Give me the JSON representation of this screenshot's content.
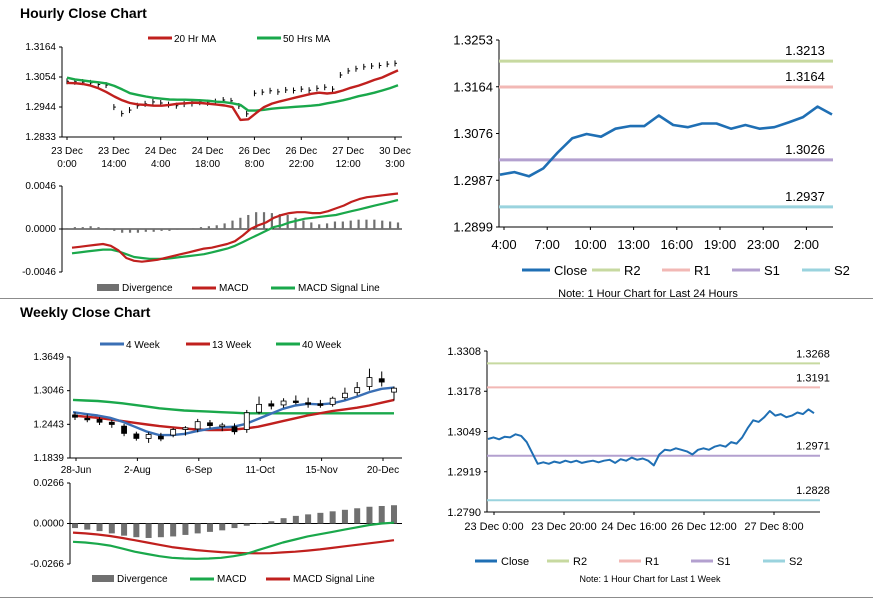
{
  "sections": {
    "hourly_title": "Hourly Close Chart",
    "weekly_title": "Weekly Close Chart"
  },
  "colors": {
    "red": "#c0201e",
    "green": "#1aa84b",
    "blue": "#3a6fb5",
    "close_blue": "#1f6fb4",
    "r2": "#c7d9a0",
    "r1": "#f2b8b5",
    "s1": "#b3a0cf",
    "s2": "#9ad3de",
    "gray_bar": "#707070"
  },
  "chart_data": [
    {
      "id": "hourly-price",
      "type": "line",
      "title": "Hourly Close Chart",
      "legend": [
        "20 Hr MA",
        "50 Hrs MA"
      ],
      "ylim": [
        1.2833,
        1.3164
      ],
      "yticks": [
        "1.3164",
        "1.3054",
        "1.2944",
        "1.2833"
      ],
      "xticks": [
        [
          "23 Dec",
          "0:00"
        ],
        [
          "23 Dec",
          "14:00"
        ],
        [
          "24 Dec",
          "4:00"
        ],
        [
          "24 Dec",
          "18:00"
        ],
        [
          "26 Dec",
          "8:00"
        ],
        [
          "26 Dec",
          "22:00"
        ],
        [
          "27 Dec",
          "12:00"
        ],
        [
          "30 Dec",
          "3:00"
        ]
      ],
      "close": [
        1.3038,
        1.3036,
        1.3035,
        1.3032,
        1.3026,
        1.3024,
        1.2943,
        1.2919,
        1.2932,
        1.2948,
        1.2955,
        1.2962,
        1.2958,
        1.2952,
        1.2948,
        1.2954,
        1.2956,
        1.2961,
        1.2959,
        1.2963,
        1.2969,
        1.2966,
        1.2947,
        1.2918,
        1.2994,
        1.2998,
        1.3003,
        1.2999,
        1.3006,
        1.3004,
        1.3009,
        1.3005,
        1.3012,
        1.3016,
        1.3009,
        1.3061,
        1.3076,
        1.3084,
        1.3091,
        1.3094,
        1.3096,
        1.3101,
        1.3104
      ],
      "series": [
        {
          "name": "20 Hr MA",
          "values": [
            1.3032,
            1.3031,
            1.3028,
            1.3022,
            1.3012,
            1.2998,
            1.2982,
            1.2968,
            1.2958,
            1.2953,
            1.2951,
            1.2948,
            1.2948,
            1.2951,
            1.2955,
            1.2957,
            1.2959,
            1.2958,
            1.2955,
            1.2952,
            1.2949,
            1.2943,
            1.2896,
            1.2898,
            1.2921,
            1.2943,
            1.2956,
            1.2964,
            1.2971,
            1.2978,
            1.2985,
            1.2992,
            1.2996,
            1.2993,
            1.2996,
            1.3004,
            1.3014,
            1.3022,
            1.3032,
            1.3043,
            1.3052,
            1.3065,
            1.3078
          ]
        },
        {
          "name": "50 Hrs MA",
          "values": [
            1.3051,
            1.3045,
            1.3041,
            1.3037,
            1.3034,
            1.303,
            1.3021,
            1.3008,
            1.2994,
            1.2988,
            1.2982,
            1.2977,
            1.2974,
            1.2971,
            1.297,
            1.297,
            1.2969,
            1.2968,
            1.2966,
            1.2963,
            1.2961,
            1.2957,
            1.2951,
            1.293,
            1.293,
            1.2933,
            1.2937,
            1.294,
            1.2942,
            1.2944,
            1.2946,
            1.2948,
            1.2951,
            1.2957,
            1.2962,
            1.2968,
            1.2975,
            1.2983,
            1.2989,
            1.2996,
            1.3004,
            1.3013,
            1.3023
          ]
        }
      ]
    },
    {
      "id": "hourly-macd",
      "type": "line",
      "legend": [
        "Divergence",
        "MACD",
        "MACD Signal Line"
      ],
      "ylim": [
        -0.0046,
        0.0046
      ],
      "yticks": [
        "0.0046",
        "0.0000",
        "-0.0046"
      ],
      "series": [
        {
          "name": "MACD",
          "values": [
            -0.002,
            -0.0019,
            -0.0018,
            -0.0017,
            -0.0016,
            -0.0018,
            -0.0023,
            -0.0031,
            -0.0034,
            -0.0035,
            -0.0034,
            -0.0033,
            -0.0031,
            -0.0029,
            -0.0027,
            -0.0025,
            -0.0023,
            -0.0021,
            -0.002,
            -0.0018,
            -0.0016,
            -0.0013,
            -0.0007,
            0.0,
            0.0004,
            0.0007,
            0.0012,
            0.0015,
            0.0017,
            0.0018,
            0.0018,
            0.0017,
            0.0017,
            0.0019,
            0.0022,
            0.0025,
            0.0029,
            0.0032,
            0.0034,
            0.0035,
            0.0036,
            0.0037,
            0.0038
          ]
        },
        {
          "name": "MACD Signal Line",
          "values": [
            -0.0026,
            -0.0025,
            -0.0024,
            -0.0023,
            -0.0022,
            -0.0022,
            -0.0024,
            -0.0027,
            -0.003,
            -0.0031,
            -0.0032,
            -0.0032,
            -0.0032,
            -0.0031,
            -0.003,
            -0.0029,
            -0.0028,
            -0.0027,
            -0.0025,
            -0.0023,
            -0.0021,
            -0.0018,
            -0.0014,
            -0.001,
            -0.0006,
            -0.0002,
            0.0002,
            0.0004,
            0.0007,
            0.0009,
            0.0011,
            0.0012,
            0.0013,
            0.0014,
            0.0015,
            0.0017,
            0.0019,
            0.0021,
            0.0023,
            0.0025,
            0.0027,
            0.0029,
            0.0031
          ]
        },
        {
          "name": "Divergence",
          "values": [
            0.0001,
            0.0002,
            0.0002,
            0.0003,
            0.0002,
            0.0001,
            -0.0002,
            -0.0004,
            -0.0004,
            -0.0004,
            -0.0003,
            -0.0003,
            -0.0002,
            -0.0002,
            -0.0001,
            0.0,
            0.0001,
            0.0002,
            0.0003,
            0.0004,
            0.0006,
            0.0009,
            0.0012,
            0.0015,
            0.0018,
            0.0018,
            0.0017,
            0.0016,
            0.0015,
            0.0012,
            0.0009,
            0.0007,
            0.0005,
            0.0006,
            0.0008,
            0.0008,
            0.0009,
            0.001,
            0.001,
            0.001,
            0.0009,
            0.0008,
            0.0007
          ]
        }
      ]
    },
    {
      "id": "hourly-pivot",
      "type": "line",
      "ylim": [
        1.2899,
        1.3253
      ],
      "yticks": [
        "1.3253",
        "1.3164",
        "1.3076",
        "1.2987",
        "1.2899"
      ],
      "xticks": [
        "4:00",
        "7:00",
        "10:00",
        "13:00",
        "16:00",
        "19:00",
        "23:00",
        "2:00"
      ],
      "series": [
        {
          "name": "Close",
          "values": [
            1.2998,
            1.3003,
            1.2995,
            1.301,
            1.304,
            1.3067,
            1.3075,
            1.307,
            1.3085,
            1.309,
            1.309,
            1.311,
            1.3092,
            1.3088,
            1.3095,
            1.3095,
            1.3085,
            1.3092,
            1.3085,
            1.3088,
            1.3097,
            1.3107,
            1.3127,
            1.3112
          ]
        }
      ],
      "levels": [
        {
          "name": "R2",
          "value": 1.3213,
          "label": "1.3213"
        },
        {
          "name": "R1",
          "value": 1.3164,
          "label": "1.3164"
        },
        {
          "name": "S1",
          "value": 1.3026,
          "label": "1.3026"
        },
        {
          "name": "S2",
          "value": 1.2937,
          "label": "1.2937"
        }
      ],
      "legend": [
        "Close",
        "R2",
        "R1",
        "S1",
        "S2"
      ],
      "note": "Note: 1 Hour Chart for Last 24 Hours"
    },
    {
      "id": "weekly-price",
      "type": "line",
      "title": "Weekly Close Chart",
      "legend": [
        "4 Week",
        "13 Week",
        "40 Week"
      ],
      "ylim": [
        1.1839,
        1.3649
      ],
      "yticks": [
        "1.3649",
        "1.3046",
        "1.2443",
        "1.1839"
      ],
      "xticks": [
        "28-Jun",
        "2-Aug",
        "6-Sep",
        "11-Oct",
        "15-Nov",
        "20-Dec"
      ],
      "candles": [
        {
          "o": 1.261,
          "h": 1.266,
          "l": 1.252,
          "c": 1.257
        },
        {
          "o": 1.255,
          "h": 1.262,
          "l": 1.248,
          "c": 1.253
        },
        {
          "o": 1.253,
          "h": 1.257,
          "l": 1.243,
          "c": 1.248
        },
        {
          "o": 1.248,
          "h": 1.252,
          "l": 1.238,
          "c": 1.244
        },
        {
          "o": 1.241,
          "h": 1.245,
          "l": 1.223,
          "c": 1.228
        },
        {
          "o": 1.227,
          "h": 1.231,
          "l": 1.215,
          "c": 1.219
        },
        {
          "o": 1.219,
          "h": 1.23,
          "l": 1.211,
          "c": 1.226
        },
        {
          "o": 1.223,
          "h": 1.229,
          "l": 1.214,
          "c": 1.218
        },
        {
          "o": 1.225,
          "h": 1.238,
          "l": 1.221,
          "c": 1.235
        },
        {
          "o": 1.235,
          "h": 1.241,
          "l": 1.224,
          "c": 1.238
        },
        {
          "o": 1.236,
          "h": 1.254,
          "l": 1.23,
          "c": 1.249
        },
        {
          "o": 1.247,
          "h": 1.252,
          "l": 1.237,
          "c": 1.242
        },
        {
          "o": 1.241,
          "h": 1.247,
          "l": 1.232,
          "c": 1.243
        },
        {
          "o": 1.24,
          "h": 1.246,
          "l": 1.226,
          "c": 1.231
        },
        {
          "o": 1.235,
          "h": 1.27,
          "l": 1.229,
          "c": 1.265
        },
        {
          "o": 1.266,
          "h": 1.294,
          "l": 1.262,
          "c": 1.28
        },
        {
          "o": 1.281,
          "h": 1.287,
          "l": 1.271,
          "c": 1.277
        },
        {
          "o": 1.279,
          "h": 1.291,
          "l": 1.274,
          "c": 1.286
        },
        {
          "o": 1.286,
          "h": 1.296,
          "l": 1.28,
          "c": 1.284
        },
        {
          "o": 1.283,
          "h": 1.292,
          "l": 1.274,
          "c": 1.281
        },
        {
          "o": 1.281,
          "h": 1.288,
          "l": 1.274,
          "c": 1.278
        },
        {
          "o": 1.28,
          "h": 1.294,
          "l": 1.276,
          "c": 1.291
        },
        {
          "o": 1.292,
          "h": 1.31,
          "l": 1.288,
          "c": 1.3
        },
        {
          "o": 1.301,
          "h": 1.32,
          "l": 1.296,
          "c": 1.31
        },
        {
          "o": 1.312,
          "h": 1.344,
          "l": 1.305,
          "c": 1.328
        },
        {
          "o": 1.326,
          "h": 1.339,
          "l": 1.312,
          "c": 1.32
        },
        {
          "o": 1.302,
          "h": 1.312,
          "l": 1.287,
          "c": 1.309
        }
      ],
      "series": [
        {
          "name": "4 Week",
          "values": [
            1.266,
            1.263,
            1.26,
            1.256,
            1.249,
            1.24,
            1.231,
            1.225,
            1.225,
            1.227,
            1.232,
            1.236,
            1.239,
            1.24,
            1.245,
            1.254,
            1.263,
            1.272,
            1.278,
            1.281,
            1.28,
            1.282,
            1.287,
            1.294,
            1.302,
            1.308,
            1.31
          ]
        },
        {
          "name": "13 Week",
          "values": [
            1.26,
            1.258,
            1.256,
            1.253,
            1.25,
            1.247,
            1.244,
            1.241,
            1.239,
            1.237,
            1.235,
            1.234,
            1.234,
            1.235,
            1.237,
            1.24,
            1.245,
            1.25,
            1.255,
            1.26,
            1.264,
            1.268,
            1.271,
            1.274,
            1.278,
            1.283,
            1.288
          ]
        },
        {
          "name": "40 Week",
          "values": [
            1.288,
            1.287,
            1.286,
            1.284,
            1.282,
            1.279,
            1.276,
            1.273,
            1.271,
            1.269,
            1.268,
            1.267,
            1.266,
            1.265,
            1.264,
            1.264,
            1.264,
            1.264,
            1.264,
            1.264,
            1.264,
            1.264,
            1.264,
            1.264,
            1.264,
            1.264,
            1.264
          ]
        }
      ]
    },
    {
      "id": "weekly-macd",
      "type": "line",
      "legend": [
        "Divergence",
        "MACD",
        "MACD Signal Line"
      ],
      "ylim": [
        -0.0266,
        0.0266
      ],
      "yticks": [
        "0.0266",
        "0.0000",
        "-0.0266"
      ],
      "series": [
        {
          "name": "MACD",
          "values": [
            -0.012,
            -0.0125,
            -0.0133,
            -0.0145,
            -0.0165,
            -0.0185,
            -0.02,
            -0.0215,
            -0.0225,
            -0.023,
            -0.0232,
            -0.023,
            -0.0225,
            -0.0215,
            -0.02,
            -0.0175,
            -0.015,
            -0.0125,
            -0.0105,
            -0.0085,
            -0.007,
            -0.0055,
            -0.004,
            -0.0025,
            -0.001,
            0.0,
            0.0005
          ]
        },
        {
          "name": "MACD Signal Line",
          "values": [
            -0.006,
            -0.0065,
            -0.0072,
            -0.0082,
            -0.0095,
            -0.011,
            -0.0125,
            -0.014,
            -0.0155,
            -0.0165,
            -0.0175,
            -0.0182,
            -0.0188,
            -0.0192,
            -0.0195,
            -0.0196,
            -0.0195,
            -0.019,
            -0.0185,
            -0.0178,
            -0.017,
            -0.016,
            -0.015,
            -0.014,
            -0.013,
            -0.012,
            -0.011
          ]
        },
        {
          "name": "Divergence",
          "values": [
            -0.003,
            -0.004,
            -0.005,
            -0.0065,
            -0.008,
            -0.009,
            -0.0095,
            -0.009,
            -0.0085,
            -0.0075,
            -0.0065,
            -0.0055,
            -0.0045,
            -0.003,
            -0.0015,
            0.0,
            0.0015,
            0.0035,
            0.005,
            0.006,
            0.007,
            0.008,
            0.009,
            0.01,
            0.011,
            0.0115,
            0.012
          ]
        }
      ]
    },
    {
      "id": "weekly-pivot",
      "type": "line",
      "ylim": [
        1.279,
        1.3308
      ],
      "yticks": [
        "1.3308",
        "1.3178",
        "1.3049",
        "1.2919",
        "1.2790"
      ],
      "xticks": [
        "23 Dec 0:00",
        "23 Dec 20:00",
        "24 Dec 16:00",
        "26 Dec 12:00",
        "27 Dec 8:00"
      ],
      "series": [
        {
          "name": "Close",
          "values": [
            1.3025,
            1.303,
            1.3024,
            1.3032,
            1.303,
            1.304,
            1.3035,
            1.3015,
            1.298,
            1.2945,
            1.295,
            1.2945,
            1.2952,
            1.2948,
            1.2955,
            1.295,
            1.2955,
            1.2948,
            1.2952,
            1.2955,
            1.295,
            1.2955,
            1.2958,
            1.2948,
            1.296,
            1.2955,
            1.2965,
            1.2958,
            1.2962,
            1.2955,
            1.294,
            1.2975,
            1.299,
            1.2988,
            1.2995,
            1.299,
            1.2985,
            1.2975,
            1.299,
            1.2995,
            1.299,
            1.3,
            1.3005,
            1.3,
            1.3015,
            1.301,
            1.303,
            1.306,
            1.3085,
            1.308,
            1.3095,
            1.3115,
            1.31,
            1.3105,
            1.3095,
            1.31,
            1.311,
            1.3105,
            1.312,
            1.3108
          ]
        }
      ],
      "levels": [
        {
          "name": "R2",
          "value": 1.3268,
          "label": "1.3268"
        },
        {
          "name": "R1",
          "value": 1.3191,
          "label": "1.3191"
        },
        {
          "name": "S1",
          "value": 1.2971,
          "label": "1.2971"
        },
        {
          "name": "S2",
          "value": 1.2828,
          "label": "1.2828"
        }
      ],
      "legend": [
        "Close",
        "R2",
        "R1",
        "S1",
        "S2"
      ],
      "note": "Note: 1 Hour Chart for Last 1 Week"
    }
  ]
}
